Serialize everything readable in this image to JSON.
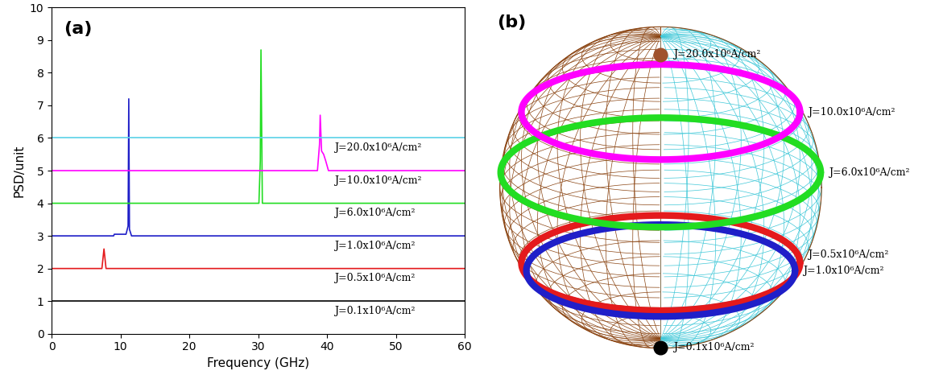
{
  "chart_data": [
    {
      "type": "line",
      "title": "(a)",
      "x_label": "Frequency (GHz)",
      "y_label": "PSD/unit",
      "xlim": [
        0,
        60
      ],
      "ylim": [
        0,
        10
      ],
      "xticks": [
        0,
        10,
        20,
        30,
        40,
        50,
        60
      ],
      "yticks": [
        0,
        1,
        2,
        3,
        4,
        5,
        6,
        7,
        8,
        9,
        10
      ],
      "grid": false,
      "series": [
        {
          "name": "J=0.1x10⁶A/cm²",
          "color": "#000000",
          "x": [
            0,
            60
          ],
          "values": [
            1,
            1
          ]
        },
        {
          "name": "J=0.5x10⁶A/cm²",
          "color": "#e41a1c",
          "x": [
            0,
            7.3,
            7.6,
            7.9,
            60
          ],
          "values": [
            2,
            2,
            2.6,
            2,
            2
          ]
        },
        {
          "name": "J=1.0x10⁶A/cm²",
          "color": "#1f1fc8",
          "x": [
            0,
            9,
            9.1,
            10.8,
            11.1,
            11.2,
            11.3,
            11.6,
            60
          ],
          "values": [
            3,
            3,
            3.05,
            3.05,
            3.3,
            7.2,
            3.2,
            3,
            3
          ]
        },
        {
          "name": "J=6.0x10⁶A/cm²",
          "color": "#22dd22",
          "x": [
            0,
            30.1,
            30.3,
            30.4,
            30.6,
            60
          ],
          "values": [
            4,
            4,
            5.3,
            8.7,
            4,
            4
          ]
        },
        {
          "name": "J=10.0x10⁶A/cm²",
          "color": "#ff00ff",
          "x": [
            0,
            38.6,
            38.9,
            39.0,
            39.2,
            39.5,
            39.8,
            40.2,
            60
          ],
          "values": [
            5,
            5,
            5.8,
            6.7,
            5.6,
            5.5,
            5.3,
            5,
            5
          ]
        },
        {
          "name": "J=20.0x10⁶A/cm²",
          "color": "#5ad2e8",
          "x": [
            0,
            60
          ],
          "values": [
            6,
            6
          ]
        }
      ]
    },
    {
      "type": "sphere",
      "title": "(b)",
      "tick_labels": false,
      "series": [
        {
          "name": "J=0.1x10⁶A/cm²",
          "color": "#000000",
          "type": "point",
          "mz": -0.9
        },
        {
          "name": "J=0.5x10⁶A/cm²",
          "color": "#e41a1c",
          "type": "orbit",
          "mz": -0.5
        },
        {
          "name": "J=1.0x10⁶A/cm²",
          "color": "#1f1fc8",
          "type": "orbit",
          "mz": -0.55
        },
        {
          "name": "J=6.0x10⁶A/cm²",
          "color": "#22dd22",
          "type": "orbit",
          "mz": 0.1
        },
        {
          "name": "J=10.0x10⁶A/cm²",
          "color": "#ff00ff",
          "type": "orbit",
          "mz": 0.5
        },
        {
          "name": "J=20.0x10⁶A/cm²",
          "color": "#a0522d",
          "type": "point",
          "mz": 0.97
        }
      ]
    }
  ]
}
